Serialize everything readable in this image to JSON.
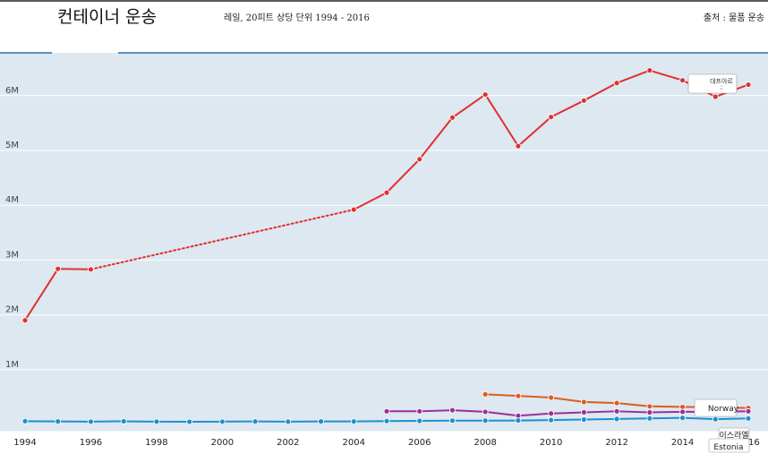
{
  "header": {
    "title": "컨테이너 운송",
    "subtitle": "레일, 20피트 상당 단위 1994 - 2016",
    "source": "출처 : 물품 운송"
  },
  "chart_data": {
    "type": "line",
    "title": "컨테이너 운송",
    "subtitle": "레일, 20피트 상당 단위 1994 - 2016",
    "xlabel": "",
    "ylabel": "",
    "ylim": [
      0,
      6500000
    ],
    "xlim": [
      1994,
      2016
    ],
    "grid": true,
    "y_ticks": [
      {
        "value": 1000000,
        "label": "1M"
      },
      {
        "value": 2000000,
        "label": "2M"
      },
      {
        "value": 3000000,
        "label": "3M"
      },
      {
        "value": 4000000,
        "label": "4M"
      },
      {
        "value": 5000000,
        "label": "5M"
      },
      {
        "value": 6000000,
        "label": "6M"
      }
    ],
    "x_ticks": [
      "1994",
      "1996",
      "1998",
      "2000",
      "2002",
      "2004",
      "2006",
      "2008",
      "2010",
      "2012",
      "2014",
      "2016"
    ],
    "series": [
      {
        "name": "",
        "color": "#e03030",
        "points": [
          {
            "x": 1994,
            "y": 1900000
          },
          {
            "x": 1995,
            "y": 2840000
          },
          {
            "x": 1996,
            "y": 2830000
          },
          {
            "x": 2004,
            "y": 3920000
          },
          {
            "x": 2005,
            "y": 4230000
          },
          {
            "x": 2006,
            "y": 4840000
          },
          {
            "x": 2007,
            "y": 5600000
          },
          {
            "x": 2008,
            "y": 6020000
          },
          {
            "x": 2009,
            "y": 5080000
          },
          {
            "x": 2010,
            "y": 5610000
          },
          {
            "x": 2011,
            "y": 5910000
          },
          {
            "x": 2012,
            "y": 6230000
          },
          {
            "x": 2013,
            "y": 6460000
          },
          {
            "x": 2014,
            "y": 6280000
          },
          {
            "x": 2015,
            "y": 5980000
          },
          {
            "x": 2016,
            "y": 6200000
          }
        ],
        "dashed_gap": [
          1996,
          2004
        ]
      },
      {
        "name": "",
        "color": "#e05a20",
        "points": [
          {
            "x": 2008,
            "y": 550000
          },
          {
            "x": 2009,
            "y": 520000
          },
          {
            "x": 2010,
            "y": 490000
          },
          {
            "x": 2011,
            "y": 410000
          },
          {
            "x": 2012,
            "y": 390000
          },
          {
            "x": 2013,
            "y": 330000
          },
          {
            "x": 2014,
            "y": 320000
          },
          {
            "x": 2015,
            "y": 310000
          },
          {
            "x": 2016,
            "y": 300000
          }
        ]
      },
      {
        "name": "",
        "color": "#9a2f9a",
        "points": [
          {
            "x": 2005,
            "y": 240000
          },
          {
            "x": 2006,
            "y": 240000
          },
          {
            "x": 2007,
            "y": 260000
          },
          {
            "x": 2008,
            "y": 230000
          },
          {
            "x": 2009,
            "y": 160000
          },
          {
            "x": 2010,
            "y": 200000
          },
          {
            "x": 2011,
            "y": 220000
          },
          {
            "x": 2012,
            "y": 240000
          },
          {
            "x": 2013,
            "y": 220000
          },
          {
            "x": 2014,
            "y": 230000
          },
          {
            "x": 2015,
            "y": 230000
          },
          {
            "x": 2016,
            "y": 240000
          }
        ]
      },
      {
        "name": "",
        "color": "#1e8fd0",
        "points": [
          {
            "x": 1994,
            "y": 60000
          },
          {
            "x": 1995,
            "y": 55000
          },
          {
            "x": 1996,
            "y": 52000
          },
          {
            "x": 1997,
            "y": 58000
          },
          {
            "x": 1998,
            "y": 52000
          },
          {
            "x": 1999,
            "y": 50000
          },
          {
            "x": 2000,
            "y": 52000
          },
          {
            "x": 2001,
            "y": 55000
          },
          {
            "x": 2002,
            "y": 52000
          },
          {
            "x": 2003,
            "y": 55000
          },
          {
            "x": 2004,
            "y": 55000
          },
          {
            "x": 2005,
            "y": 62000
          },
          {
            "x": 2006,
            "y": 65000
          },
          {
            "x": 2007,
            "y": 70000
          },
          {
            "x": 2008,
            "y": 70000
          },
          {
            "x": 2009,
            "y": 72000
          },
          {
            "x": 2010,
            "y": 80000
          },
          {
            "x": 2011,
            "y": 90000
          },
          {
            "x": 2012,
            "y": 100000
          },
          {
            "x": 2013,
            "y": 110000
          },
          {
            "x": 2014,
            "y": 120000
          },
          {
            "x": 2015,
            "y": 95000
          },
          {
            "x": 2016,
            "y": 110000
          }
        ]
      }
    ],
    "annotations": [
      {
        "label": "대프아르\n; ",
        "series": 0
      },
      {
        "label": "Norway",
        "series": 1
      },
      {
        "label": "이스라엘",
        "series": 3
      },
      {
        "label": "Estonia",
        "series": 3
      }
    ]
  }
}
